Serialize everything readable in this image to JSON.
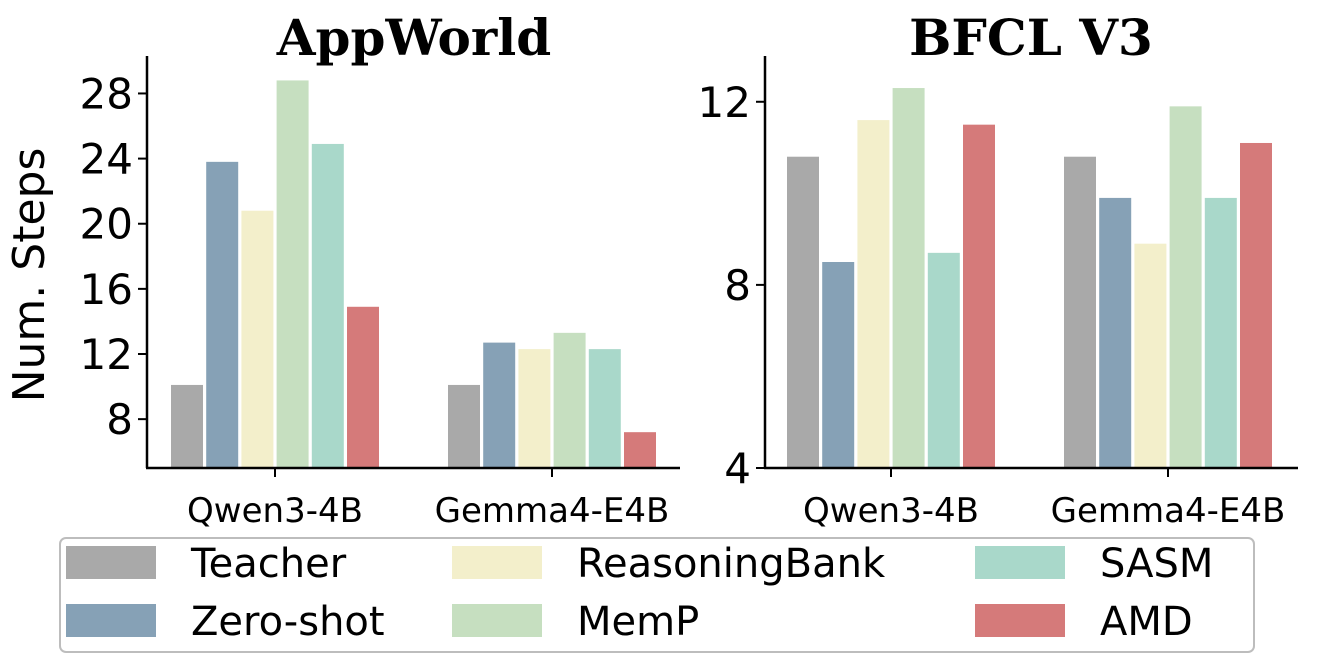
{
  "legend": [
    {
      "name": "Teacher",
      "color": "#a9a9a9"
    },
    {
      "name": "Zero-shot",
      "color": "#86a1b6"
    },
    {
      "name": "ReasoningBank",
      "color": "#f3efcb"
    },
    {
      "name": "MemP",
      "color": "#c6dfc0"
    },
    {
      "name": "SASM",
      "color": "#a9d8ca"
    },
    {
      "name": "AMD",
      "color": "#d57a7a"
    }
  ],
  "chart_data": [
    {
      "type": "bar",
      "title": "AppWorld",
      "ylabel": "Num. Steps",
      "xlabel": "",
      "categories": [
        "Qwen3-4B",
        "Gemma4-E4B"
      ],
      "ylim": [
        5,
        30.3
      ],
      "yticks": [
        8,
        12,
        16,
        20,
        24,
        28
      ],
      "series": [
        {
          "name": "Teacher",
          "values": [
            10.1,
            10.1
          ]
        },
        {
          "name": "Zero-shot",
          "values": [
            23.8,
            12.7
          ]
        },
        {
          "name": "ReasoningBank",
          "values": [
            20.8,
            12.3
          ]
        },
        {
          "name": "MemP",
          "values": [
            28.8,
            13.3
          ]
        },
        {
          "name": "SASM",
          "values": [
            24.9,
            12.3
          ]
        },
        {
          "name": "AMD",
          "values": [
            14.9,
            7.2
          ]
        }
      ]
    },
    {
      "type": "bar",
      "title": "BFCL V3",
      "ylabel": "",
      "xlabel": "",
      "categories": [
        "Qwen3-4B",
        "Gemma4-E4B"
      ],
      "ylim": [
        4,
        13
      ],
      "yticks": [
        4,
        8,
        12
      ],
      "series": [
        {
          "name": "Teacher",
          "values": [
            10.8,
            10.8
          ]
        },
        {
          "name": "Zero-shot",
          "values": [
            8.5,
            9.9
          ]
        },
        {
          "name": "ReasoningBank",
          "values": [
            11.6,
            8.9
          ]
        },
        {
          "name": "MemP",
          "values": [
            12.3,
            11.9
          ]
        },
        {
          "name": "SASM",
          "values": [
            8.7,
            9.9
          ]
        },
        {
          "name": "AMD",
          "values": [
            11.5,
            11.1
          ]
        }
      ]
    }
  ]
}
